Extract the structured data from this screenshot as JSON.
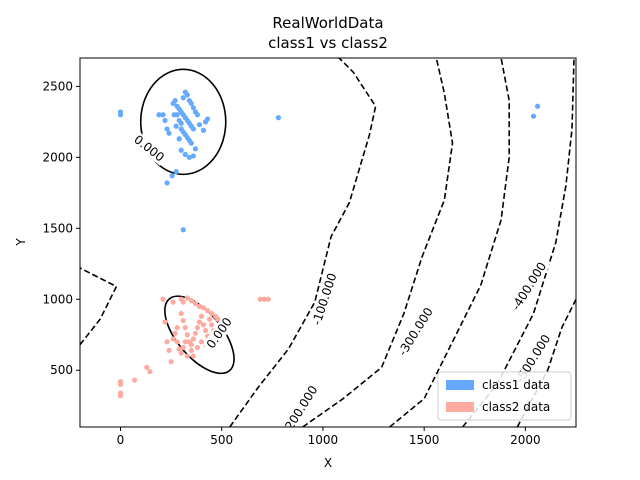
{
  "chart_data": {
    "type": "scatter",
    "title": "RealWorldData",
    "subtitle": "class1 vs  class2",
    "xlabel": "X",
    "ylabel": "Y",
    "xlim": [
      -200,
      2250
    ],
    "ylim": [
      100,
      2700
    ],
    "xticks": [
      0,
      500,
      1000,
      1500,
      2000
    ],
    "yticks": [
      500,
      1000,
      1500,
      2000,
      2500
    ],
    "grid": false,
    "legend_position": "lower-right",
    "series": [
      {
        "name": "class1 data",
        "color": "#66aaff",
        "points": [
          [
            0,
            2320
          ],
          [
            0,
            2300
          ],
          [
            190,
            2300
          ],
          [
            210,
            2300
          ],
          [
            220,
            2260
          ],
          [
            230,
            2200
          ],
          [
            240,
            2170
          ],
          [
            230,
            1820
          ],
          [
            255,
            1870
          ],
          [
            275,
            1900
          ],
          [
            310,
            1490
          ],
          [
            780,
            2280
          ],
          [
            2040,
            2290
          ],
          [
            2060,
            2360
          ],
          [
            390,
            2230
          ],
          [
            410,
            2190
          ],
          [
            420,
            2250
          ],
          [
            430,
            2270
          ],
          [
            260,
            2380
          ],
          [
            270,
            2400
          ],
          [
            280,
            2360
          ],
          [
            290,
            2340
          ],
          [
            300,
            2320
          ],
          [
            310,
            2300
          ],
          [
            320,
            2280
          ],
          [
            330,
            2260
          ],
          [
            340,
            2240
          ],
          [
            350,
            2220
          ],
          [
            360,
            2200
          ],
          [
            300,
            2200
          ],
          [
            310,
            2180
          ],
          [
            320,
            2160
          ],
          [
            330,
            2140
          ],
          [
            340,
            2120
          ],
          [
            350,
            2100
          ],
          [
            290,
            2260
          ],
          [
            300,
            2240
          ],
          [
            280,
            2300
          ],
          [
            310,
            2420
          ],
          [
            320,
            2460
          ],
          [
            330,
            2440
          ],
          [
            340,
            2400
          ],
          [
            350,
            2380
          ],
          [
            360,
            2350
          ],
          [
            370,
            2320
          ],
          [
            380,
            2300
          ],
          [
            300,
            2050
          ],
          [
            320,
            2020
          ],
          [
            340,
            2000
          ],
          [
            360,
            2010
          ],
          [
            370,
            2060
          ],
          [
            290,
            2130
          ],
          [
            275,
            2220
          ],
          [
            265,
            2300
          ]
        ]
      },
      {
        "name": "class2 data",
        "color": "#ffaaa0",
        "points": [
          [
            0,
            420
          ],
          [
            0,
            400
          ],
          [
            0,
            340
          ],
          [
            0,
            320
          ],
          [
            70,
            430
          ],
          [
            130,
            520
          ],
          [
            145,
            490
          ],
          [
            210,
            1000
          ],
          [
            220,
            840
          ],
          [
            230,
            700
          ],
          [
            240,
            640
          ],
          [
            250,
            560
          ],
          [
            260,
            980
          ],
          [
            280,
            800
          ],
          [
            300,
            1000
          ],
          [
            310,
            980
          ],
          [
            330,
            1010
          ],
          [
            350,
            990
          ],
          [
            370,
            970
          ],
          [
            390,
            950
          ],
          [
            410,
            940
          ],
          [
            430,
            920
          ],
          [
            450,
            900
          ],
          [
            470,
            880
          ],
          [
            480,
            860
          ],
          [
            690,
            1000
          ],
          [
            710,
            1000
          ],
          [
            730,
            1000
          ],
          [
            300,
            900
          ],
          [
            310,
            850
          ],
          [
            320,
            800
          ],
          [
            330,
            750
          ],
          [
            340,
            700
          ],
          [
            350,
            680
          ],
          [
            360,
            720
          ],
          [
            370,
            760
          ],
          [
            380,
            800
          ],
          [
            390,
            840
          ],
          [
            400,
            880
          ],
          [
            410,
            820
          ],
          [
            420,
            780
          ],
          [
            430,
            740
          ],
          [
            440,
            860
          ],
          [
            450,
            820
          ],
          [
            460,
            780
          ],
          [
            470,
            740
          ],
          [
            280,
            700
          ],
          [
            290,
            650
          ],
          [
            300,
            620
          ],
          [
            310,
            660
          ],
          [
            320,
            700
          ],
          [
            330,
            600
          ],
          [
            350,
            640
          ],
          [
            360,
            600
          ],
          [
            380,
            660
          ],
          [
            400,
            700
          ],
          [
            420,
            680
          ],
          [
            440,
            720
          ],
          [
            460,
            760
          ],
          [
            270,
            760
          ],
          [
            260,
            720
          ]
        ]
      }
    ],
    "contours": [
      {
        "level": "0.000",
        "style": "solid",
        "kind": "ellipse",
        "cx": 310,
        "cy": 2250,
        "rx": 210,
        "ry": 370,
        "angle": 0,
        "label_at": [
          140,
          2060
        ],
        "label_angle": 38
      },
      {
        "level": "0.000",
        "style": "solid",
        "kind": "ellipse",
        "cx": 390,
        "cy": 750,
        "rx": 110,
        "ry": 330,
        "angle": 40,
        "label_at": [
          490,
          760
        ],
        "label_angle": -55
      },
      {
        "level": "-100.000",
        "style": "dashed",
        "kind": "path",
        "points": [
          [
            -200,
            680
          ],
          [
            -100,
            860
          ],
          [
            -20,
            1090
          ],
          [
            -200,
            1220
          ]
        ],
        "label_at": null
      },
      {
        "level": "-100.000",
        "style": "dashed",
        "kind": "path",
        "points": [
          [
            540,
            100
          ],
          [
            680,
            380
          ],
          [
            830,
            650
          ],
          [
            960,
            980
          ],
          [
            1040,
            1440
          ],
          [
            1130,
            1680
          ],
          [
            1230,
            2160
          ],
          [
            1260,
            2360
          ],
          [
            1150,
            2600
          ],
          [
            1080,
            2700
          ]
        ],
        "label_at": [
          1010,
          1000
        ],
        "label_angle": -72
      },
      {
        "level": "-200.000",
        "style": "dashed",
        "kind": "path",
        "points": [
          [
            900,
            100
          ],
          [
            1100,
            300
          ],
          [
            1290,
            520
          ],
          [
            1400,
            900
          ],
          [
            1490,
            1300
          ],
          [
            1600,
            1700
          ],
          [
            1640,
            2100
          ],
          [
            1600,
            2450
          ],
          [
            1560,
            2700
          ]
        ],
        "label_at": [
          890,
          220
        ],
        "label_angle": -58
      },
      {
        "level": "-300.000",
        "style": "dashed",
        "kind": "path",
        "points": [
          [
            1330,
            100
          ],
          [
            1500,
            300
          ],
          [
            1640,
            700
          ],
          [
            1780,
            1100
          ],
          [
            1880,
            1560
          ],
          [
            1920,
            2000
          ],
          [
            1920,
            2400
          ],
          [
            1880,
            2700
          ]
        ],
        "label_at": [
          1460,
          770
        ],
        "label_angle": -58
      },
      {
        "level": "-400.000",
        "style": "dashed",
        "kind": "path",
        "points": [
          [
            1690,
            100
          ],
          [
            1860,
            400
          ],
          [
            2040,
            900
          ],
          [
            2150,
            1400
          ],
          [
            2200,
            1800
          ],
          [
            2230,
            2200
          ],
          [
            2240,
            2700
          ]
        ],
        "label_at": [
          2020,
          1090
        ],
        "label_angle": -58
      },
      {
        "level": "-500.000",
        "style": "dashed",
        "kind": "path",
        "points": [
          [
            1960,
            100
          ],
          [
            2110,
            500
          ],
          [
            2180,
            800
          ],
          [
            2250,
            1000
          ]
        ],
        "label_at": [
          2040,
          580
        ],
        "label_angle": -58
      }
    ],
    "legend": [
      {
        "label": "class1 data",
        "color": "#66aaff"
      },
      {
        "label": "class2 data",
        "color": "#ffaaa0"
      }
    ]
  }
}
